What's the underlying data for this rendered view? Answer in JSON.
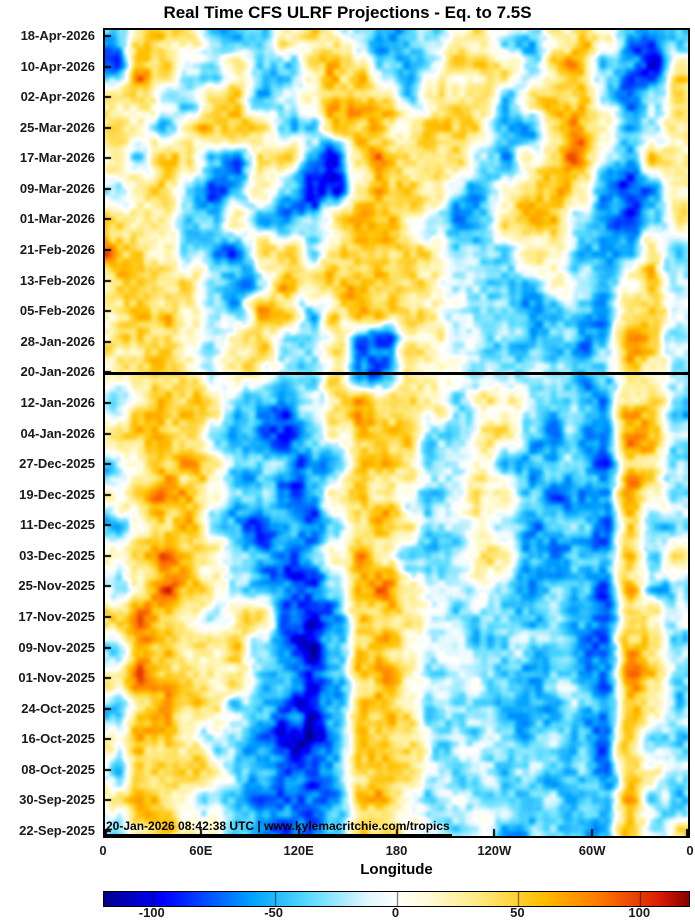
{
  "chart_data": {
    "type": "heatmap",
    "title": "Real Time CFS ULRF Projections - Eq. to 7.5S",
    "xlabel": "Longitude",
    "watermark": "20-Jan-2026 08:42:38 UTC | www.kylemacritchie.com/tropics",
    "x_tick_labels": [
      "0",
      "60E",
      "120E",
      "180",
      "120W",
      "60W",
      "0"
    ],
    "x_tick_lons": [
      0,
      60,
      120,
      180,
      240,
      300,
      360
    ],
    "lon_range": [
      0,
      360
    ],
    "y_tick_labels": [
      "18-Apr-2026",
      "10-Apr-2026",
      "02-Apr-2026",
      "25-Mar-2026",
      "17-Mar-2026",
      "09-Mar-2026",
      "01-Mar-2026",
      "21-Feb-2026",
      "13-Feb-2026",
      "05-Feb-2026",
      "28-Jan-2026",
      "20-Jan-2026",
      "12-Jan-2026",
      "04-Jan-2026",
      "27-Dec-2025",
      "19-Dec-2025",
      "11-Dec-2025",
      "03-Dec-2025",
      "25-Nov-2025",
      "17-Nov-2025",
      "09-Nov-2025",
      "01-Nov-2025",
      "24-Oct-2025",
      "16-Oct-2025",
      "08-Oct-2025",
      "30-Sep-2025",
      "22-Sep-2025"
    ],
    "time_step_days": 8,
    "init_line_label": "20-Jan-2026",
    "init_line_row": 11,
    "value_range": [
      -120,
      120
    ],
    "colorbar_tick_values": [
      -100,
      -50,
      0,
      50,
      100
    ],
    "colorbar_tick_labels": [
      "-100",
      "-50",
      "0",
      "50",
      "100"
    ],
    "colormap_stops": [
      [
        -120,
        0,
        0,
        143
      ],
      [
        -96,
        0,
        0,
        255
      ],
      [
        -60,
        0,
        160,
        255
      ],
      [
        -36,
        90,
        220,
        255
      ],
      [
        -12,
        225,
        248,
        255
      ],
      [
        0,
        255,
        255,
        255
      ],
      [
        12,
        255,
        252,
        220
      ],
      [
        36,
        255,
        232,
        120
      ],
      [
        60,
        255,
        192,
        0
      ],
      [
        84,
        255,
        120,
        0
      ],
      [
        108,
        218,
        30,
        0
      ],
      [
        120,
        139,
        0,
        0
      ]
    ],
    "grid_lon_step_deg": 15,
    "texture_noise": {
      "amp1": 24,
      "scale1": 16,
      "amp2": 14,
      "scale2": 7,
      "seed": 7
    },
    "grid": [
      [
        -55,
        35,
        45,
        25,
        -35,
        -60,
        -40,
        30,
        45,
        25,
        -25,
        -45,
        -55,
        -30,
        20,
        35,
        -30,
        -40,
        25,
        50,
        30,
        -55,
        -75,
        -35
      ],
      [
        -90,
        75,
        45,
        -20,
        -45,
        25,
        -60,
        -35,
        30,
        50,
        40,
        -25,
        -55,
        -30,
        25,
        40,
        25,
        -30,
        40,
        70,
        -25,
        -65,
        -90,
        25
      ],
      [
        30,
        50,
        -25,
        -40,
        25,
        40,
        -50,
        -30,
        30,
        55,
        60,
        35,
        -45,
        25,
        40,
        30,
        -25,
        35,
        65,
        45,
        -35,
        -75,
        -45,
        35
      ],
      [
        35,
        25,
        -30,
        30,
        50,
        65,
        25,
        -45,
        -30,
        35,
        60,
        45,
        25,
        45,
        50,
        25,
        -40,
        -55,
        30,
        75,
        35,
        -45,
        -30,
        40
      ],
      [
        25,
        -25,
        35,
        45,
        -40,
        -65,
        30,
        40,
        -55,
        -85,
        40,
        65,
        50,
        45,
        25,
        -30,
        -50,
        25,
        60,
        85,
        -30,
        -65,
        35,
        30
      ],
      [
        -30,
        30,
        45,
        -25,
        -70,
        -45,
        35,
        -40,
        -80,
        -100,
        30,
        55,
        60,
        35,
        -35,
        -45,
        25,
        45,
        75,
        40,
        -45,
        -80,
        -50,
        25
      ],
      [
        30,
        45,
        20,
        -40,
        -30,
        25,
        -45,
        -70,
        -40,
        25,
        50,
        40,
        25,
        -25,
        -45,
        -30,
        30,
        55,
        45,
        -25,
        -55,
        -85,
        -35,
        25
      ],
      [
        75,
        40,
        30,
        -25,
        -45,
        -60,
        25,
        40,
        -30,
        30,
        55,
        60,
        40,
        25,
        -30,
        -40,
        -30,
        25,
        40,
        -35,
        -60,
        -30,
        25,
        -40
      ],
      [
        35,
        55,
        45,
        30,
        -35,
        -55,
        -30,
        60,
        35,
        45,
        60,
        45,
        50,
        30,
        -25,
        -35,
        -45,
        -25,
        30,
        -30,
        -50,
        25,
        45,
        -30
      ],
      [
        30,
        60,
        50,
        25,
        -30,
        -40,
        65,
        45,
        -35,
        40,
        55,
        50,
        40,
        25,
        -20,
        -30,
        -40,
        -50,
        -30,
        -35,
        -45,
        30,
        60,
        -25
      ],
      [
        25,
        50,
        60,
        35,
        -25,
        30,
        40,
        -30,
        -40,
        35,
        -70,
        -90,
        30,
        20,
        -15,
        -25,
        -35,
        -30,
        -45,
        -60,
        -40,
        55,
        35,
        -30
      ],
      [
        20,
        45,
        55,
        30,
        -20,
        25,
        30,
        -35,
        -25,
        30,
        -85,
        -60,
        25,
        15,
        -10,
        -20,
        -30,
        -25,
        -40,
        -55,
        -35,
        40,
        25,
        -25
      ],
      [
        -40,
        30,
        60,
        45,
        25,
        -30,
        -50,
        -70,
        -35,
        30,
        50,
        30,
        55,
        40,
        -25,
        20,
        35,
        -25,
        -45,
        -30,
        -60,
        45,
        60,
        -35
      ],
      [
        30,
        45,
        65,
        40,
        -25,
        -45,
        -65,
        -80,
        -40,
        25,
        55,
        40,
        50,
        -30,
        -30,
        25,
        30,
        -35,
        -60,
        -40,
        -70,
        65,
        40,
        -30
      ],
      [
        -30,
        25,
        55,
        60,
        30,
        -35,
        -55,
        -40,
        -70,
        -45,
        40,
        60,
        25,
        -35,
        -25,
        20,
        -30,
        -50,
        -30,
        -40,
        -75,
        50,
        35,
        -45
      ],
      [
        25,
        40,
        70,
        45,
        25,
        -30,
        -45,
        -75,
        -50,
        30,
        55,
        35,
        -25,
        -40,
        -20,
        25,
        30,
        -40,
        -70,
        -45,
        -55,
        80,
        30,
        -30
      ],
      [
        -35,
        30,
        60,
        50,
        -25,
        -50,
        -80,
        -45,
        -90,
        -35,
        45,
        60,
        30,
        -30,
        -20,
        15,
        -35,
        -55,
        -30,
        -40,
        -70,
        50,
        -40,
        -30
      ],
      [
        30,
        55,
        75,
        40,
        25,
        -40,
        -60,
        -85,
        -45,
        35,
        60,
        40,
        -30,
        -45,
        -25,
        20,
        25,
        -45,
        -65,
        -35,
        -60,
        45,
        -30,
        25
      ],
      [
        -30,
        40,
        80,
        55,
        30,
        -30,
        -50,
        -70,
        -90,
        -40,
        50,
        65,
        30,
        -25,
        -30,
        20,
        -30,
        -50,
        -40,
        -45,
        -75,
        55,
        -35,
        -40
      ],
      [
        45,
        80,
        50,
        30,
        -35,
        25,
        40,
        -60,
        -85,
        -50,
        40,
        55,
        25,
        -30,
        -25,
        -20,
        -25,
        -35,
        -30,
        -55,
        -70,
        55,
        35,
        -30
      ],
      [
        -30,
        85,
        45,
        25,
        30,
        45,
        -40,
        -75,
        -95,
        -40,
        35,
        50,
        30,
        -25,
        -30,
        -25,
        -20,
        -40,
        -35,
        -60,
        -75,
        60,
        40,
        -35
      ],
      [
        35,
        90,
        55,
        35,
        40,
        30,
        -35,
        -55,
        -80,
        -50,
        45,
        60,
        25,
        -30,
        -25,
        -20,
        -30,
        -50,
        -30,
        -45,
        -65,
        70,
        50,
        -30
      ],
      [
        -40,
        45,
        70,
        40,
        25,
        -30,
        -45,
        -70,
        -95,
        -45,
        40,
        55,
        30,
        -25,
        -20,
        -25,
        -35,
        -55,
        -45,
        -40,
        -60,
        60,
        40,
        -30
      ],
      [
        30,
        60,
        50,
        30,
        -25,
        -40,
        -65,
        -90,
        -105,
        -55,
        35,
        50,
        25,
        -30,
        -25,
        -20,
        -30,
        -45,
        -35,
        -50,
        -70,
        55,
        -40,
        -25
      ],
      [
        -35,
        40,
        60,
        35,
        25,
        -35,
        -55,
        -80,
        -60,
        -40,
        45,
        55,
        30,
        -20,
        -25,
        -30,
        -25,
        -40,
        -55,
        -45,
        -65,
        45,
        30,
        -30
      ],
      [
        30,
        50,
        45,
        25,
        -30,
        -45,
        -70,
        -55,
        -85,
        -45,
        40,
        50,
        20,
        -25,
        -20,
        -25,
        -30,
        -50,
        -40,
        -30,
        -55,
        60,
        -35,
        -30
      ],
      [
        -30,
        45,
        55,
        30,
        20,
        -30,
        -50,
        -75,
        -60,
        -35,
        35,
        45,
        25,
        -20,
        -25,
        -20,
        -35,
        -45,
        -50,
        -35,
        -45,
        50,
        -30,
        25
      ]
    ]
  }
}
